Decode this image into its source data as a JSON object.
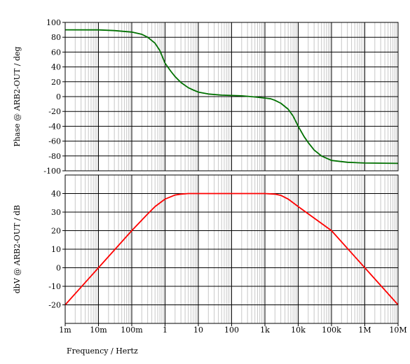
{
  "chart_data": [
    {
      "type": "line",
      "title": "",
      "ylabel": "Phase @ ARB2-OUT / deg",
      "xscale": "log",
      "xlim": [
        0.001,
        10000000
      ],
      "ylim": [
        -100,
        100
      ],
      "yticks": [
        100,
        80,
        60,
        40,
        20,
        0,
        -20,
        -40,
        -60,
        -80,
        -100
      ],
      "grid": true,
      "series": [
        {
          "color": "#007000",
          "x": [
            0.001,
            0.01,
            0.03,
            0.1,
            0.2,
            0.3,
            0.5,
            0.7,
            1,
            1.5,
            2,
            3,
            5,
            7,
            10,
            20,
            50,
            100,
            200,
            500,
            1000,
            1500,
            2000,
            3000,
            5000,
            7000,
            10000,
            15000,
            20000,
            30000,
            50000,
            100000,
            300000,
            1000000,
            10000000
          ],
          "y": [
            90,
            89.9,
            89,
            87,
            84,
            80,
            72,
            62,
            45,
            34,
            27,
            19,
            12,
            9,
            6,
            3.5,
            2,
            1.5,
            1,
            -0.5,
            -2,
            -3,
            -5,
            -9,
            -17,
            -26,
            -40,
            -54,
            -62,
            -72,
            -80,
            -86,
            -88.5,
            -89.5,
            -90
          ]
        }
      ]
    },
    {
      "type": "line",
      "title": "",
      "xlabel": "Frequency / Hertz",
      "ylabel": "dbV @ ARB2-OUT / dB",
      "xscale": "log",
      "xlim": [
        0.001,
        10000000
      ],
      "ylim": [
        -30,
        50
      ],
      "yticks": [
        40,
        30,
        20,
        10,
        0,
        -10,
        -20
      ],
      "xtick_labels": [
        "1m",
        "10m",
        "100m",
        "1",
        "10",
        "100",
        "1k",
        "10k",
        "100k",
        "1M",
        "10M"
      ],
      "grid": true,
      "series": [
        {
          "color": "#ff0000",
          "x": [
            0.001,
            0.01,
            0.1,
            0.3,
            0.5,
            1,
            2,
            3,
            5,
            10,
            100,
            1000,
            2000,
            3000,
            5000,
            10000,
            100000,
            1000000,
            10000000
          ],
          "y": [
            -20,
            0,
            20,
            29,
            33,
            37,
            39.2,
            39.7,
            40,
            40,
            40,
            40,
            39.7,
            39,
            37,
            33,
            20,
            0,
            -20
          ]
        }
      ]
    }
  ]
}
